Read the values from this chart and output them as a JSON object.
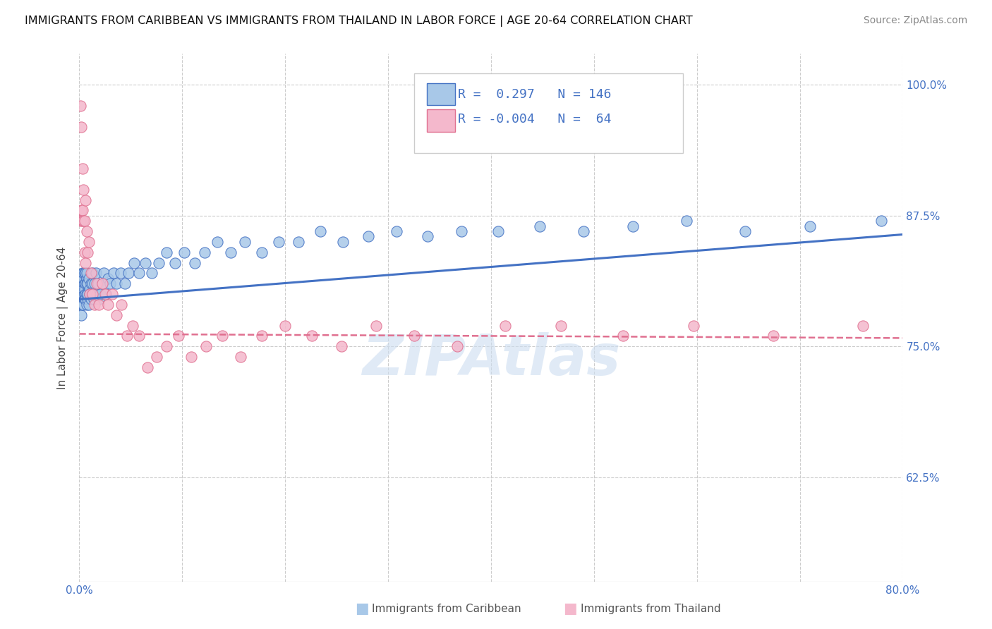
{
  "title": "IMMIGRANTS FROM CARIBBEAN VS IMMIGRANTS FROM THAILAND IN LABOR FORCE | AGE 20-64 CORRELATION CHART",
  "source": "Source: ZipAtlas.com",
  "ylabel": "In Labor Force | Age 20-64",
  "legend_R": [
    0.297,
    -0.004
  ],
  "legend_N": [
    146,
    64
  ],
  "xlim": [
    0.0,
    0.8
  ],
  "ylim": [
    0.525,
    1.03
  ],
  "xticks": [
    0.0,
    0.1,
    0.2,
    0.3,
    0.4,
    0.5,
    0.6,
    0.7,
    0.8
  ],
  "xtick_labels_shown": {
    "0.0": "0.0%",
    "0.8": "80.0%"
  },
  "yticks": [
    0.625,
    0.75,
    0.875,
    1.0
  ],
  "ytick_labels": [
    "62.5%",
    "75.0%",
    "87.5%",
    "100.0%"
  ],
  "color_caribbean": "#a8c8e8",
  "color_thailand": "#f4b8cc",
  "trend_color_caribbean": "#4472c4",
  "trend_color_thailand": "#e07090",
  "background_color": "#ffffff",
  "watermark": "ZIPAtlas",
  "watermark_color": "#ccddf0",
  "caribbean_x": [
    0.001,
    0.001,
    0.002,
    0.002,
    0.002,
    0.002,
    0.002,
    0.003,
    0.003,
    0.003,
    0.003,
    0.003,
    0.003,
    0.004,
    0.004,
    0.004,
    0.004,
    0.004,
    0.004,
    0.005,
    0.005,
    0.005,
    0.005,
    0.005,
    0.006,
    0.006,
    0.006,
    0.006,
    0.007,
    0.007,
    0.007,
    0.007,
    0.007,
    0.008,
    0.008,
    0.008,
    0.009,
    0.009,
    0.01,
    0.01,
    0.011,
    0.011,
    0.012,
    0.013,
    0.013,
    0.014,
    0.015,
    0.015,
    0.016,
    0.017,
    0.018,
    0.019,
    0.02,
    0.022,
    0.024,
    0.026,
    0.028,
    0.03,
    0.033,
    0.036,
    0.04,
    0.044,
    0.048,
    0.053,
    0.058,
    0.064,
    0.07,
    0.077,
    0.085,
    0.093,
    0.102,
    0.112,
    0.122,
    0.134,
    0.147,
    0.161,
    0.177,
    0.194,
    0.213,
    0.234,
    0.256,
    0.281,
    0.308,
    0.338,
    0.371,
    0.407,
    0.447,
    0.49,
    0.538,
    0.59,
    0.647,
    0.71,
    0.779
  ],
  "caribbean_y": [
    0.8,
    0.81,
    0.79,
    0.81,
    0.8,
    0.815,
    0.78,
    0.805,
    0.795,
    0.81,
    0.82,
    0.8,
    0.79,
    0.81,
    0.8,
    0.815,
    0.79,
    0.805,
    0.82,
    0.8,
    0.81,
    0.795,
    0.82,
    0.805,
    0.8,
    0.81,
    0.82,
    0.795,
    0.8,
    0.815,
    0.79,
    0.81,
    0.82,
    0.795,
    0.81,
    0.8,
    0.815,
    0.79,
    0.805,
    0.8,
    0.81,
    0.795,
    0.8,
    0.81,
    0.82,
    0.795,
    0.8,
    0.81,
    0.82,
    0.8,
    0.81,
    0.795,
    0.8,
    0.81,
    0.82,
    0.8,
    0.815,
    0.81,
    0.82,
    0.81,
    0.82,
    0.81,
    0.82,
    0.83,
    0.82,
    0.83,
    0.82,
    0.83,
    0.84,
    0.83,
    0.84,
    0.83,
    0.84,
    0.85,
    0.84,
    0.85,
    0.84,
    0.85,
    0.85,
    0.86,
    0.85,
    0.855,
    0.86,
    0.855,
    0.86,
    0.86,
    0.865,
    0.86,
    0.865,
    0.87,
    0.86,
    0.865,
    0.87
  ],
  "thailand_x": [
    0.001,
    0.001,
    0.002,
    0.002,
    0.003,
    0.003,
    0.003,
    0.004,
    0.004,
    0.005,
    0.005,
    0.006,
    0.006,
    0.007,
    0.008,
    0.009,
    0.01,
    0.011,
    0.013,
    0.015,
    0.017,
    0.019,
    0.022,
    0.025,
    0.028,
    0.032,
    0.036,
    0.041,
    0.046,
    0.052,
    0.058,
    0.066,
    0.075,
    0.085,
    0.096,
    0.109,
    0.123,
    0.139,
    0.157,
    0.177,
    0.2,
    0.226,
    0.255,
    0.288,
    0.325,
    0.367,
    0.414,
    0.468,
    0.528,
    0.597,
    0.674,
    0.761
  ],
  "thailand_y": [
    0.98,
    0.87,
    0.96,
    0.88,
    0.92,
    0.87,
    0.88,
    0.9,
    0.87,
    0.87,
    0.84,
    0.83,
    0.89,
    0.86,
    0.84,
    0.85,
    0.8,
    0.82,
    0.8,
    0.79,
    0.81,
    0.79,
    0.81,
    0.8,
    0.79,
    0.8,
    0.78,
    0.79,
    0.76,
    0.77,
    0.76,
    0.73,
    0.74,
    0.75,
    0.76,
    0.74,
    0.75,
    0.76,
    0.74,
    0.76,
    0.77,
    0.76,
    0.75,
    0.77,
    0.76,
    0.75,
    0.77,
    0.77,
    0.76,
    0.77,
    0.76,
    0.77
  ],
  "caribbean_trend_x0": 0.0,
  "caribbean_trend_y0": 0.795,
  "caribbean_trend_x1": 0.8,
  "caribbean_trend_y1": 0.857,
  "thailand_trend_x0": 0.0,
  "thailand_trend_y0": 0.762,
  "thailand_trend_x1": 0.8,
  "thailand_trend_y1": 0.758
}
